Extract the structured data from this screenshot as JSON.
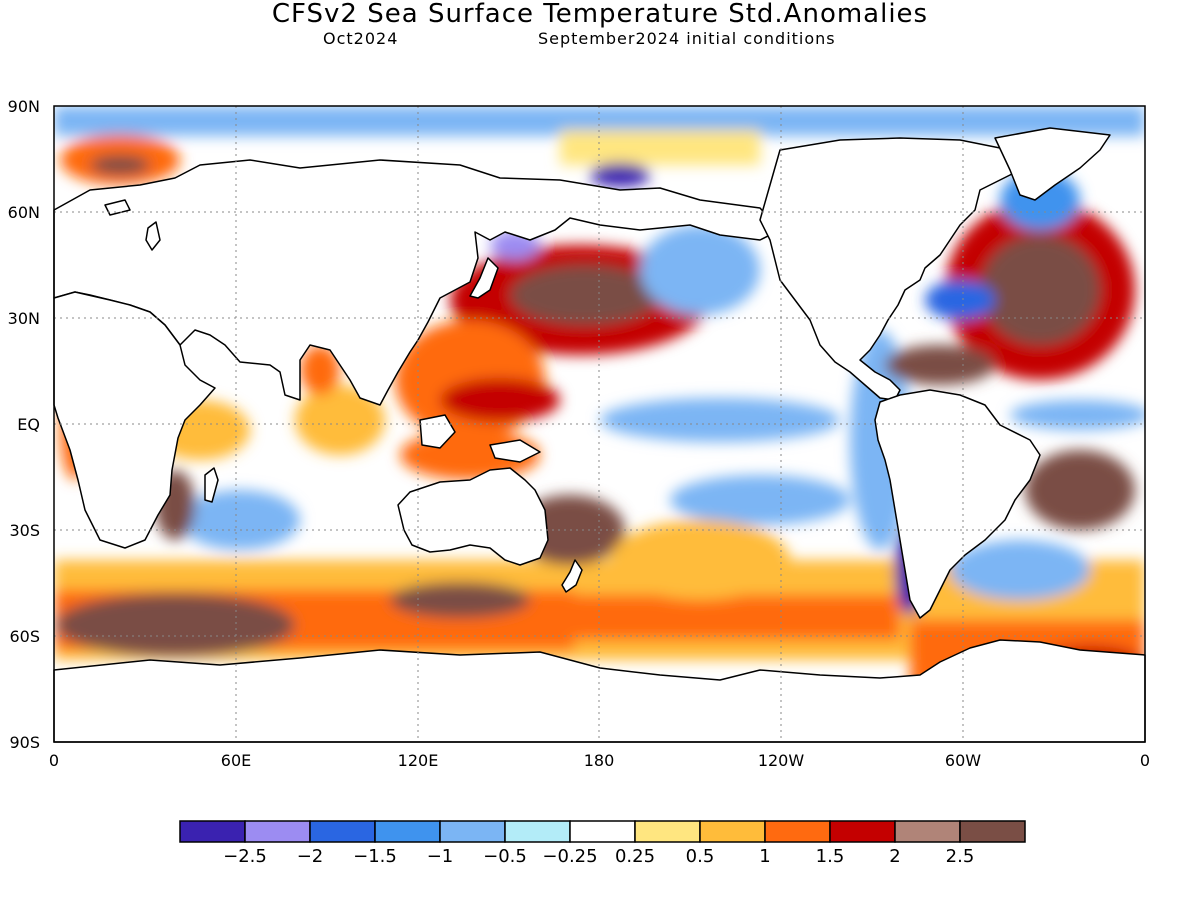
{
  "title": "CFSv2 Sea Surface Temperature Std.Anomalies",
  "valid_month": "Oct2024",
  "initial_conditions": "September2024 initial conditions",
  "map": {
    "lat_labels": [
      "90N",
      "60N",
      "30N",
      "EQ",
      "30S",
      "60S",
      "90S"
    ],
    "lon_labels": [
      "0",
      "60E",
      "120E",
      "180",
      "120W",
      "60W",
      "0"
    ]
  },
  "colorbar": {
    "colors": [
      "#3a22b0",
      "#9c8cf2",
      "#2a66e2",
      "#3f93ee",
      "#7bb5f4",
      "#b3ecf8",
      "#ffffff",
      "#ffe680",
      "#ffbc3a",
      "#ff6a10",
      "#c40000",
      "#b08478",
      "#7a4e45"
    ],
    "labels": [
      "−2.5",
      "−2",
      "−1.5",
      "−1",
      "−0.5",
      "−0.25",
      "0.25",
      "0.5",
      "1",
      "1.5",
      "2",
      "2.5"
    ]
  }
}
